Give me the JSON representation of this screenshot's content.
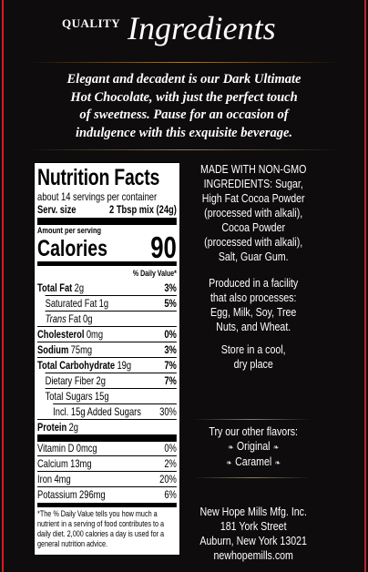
{
  "header": {
    "quality": "QUALITY",
    "title": "Ingredients"
  },
  "intro": [
    "Elegant and decadent is our Dark Ultimate",
    "Hot Chocolate, with just the perfect touch",
    "of sweetness. Pause for an occasion of",
    "indulgence with this exquisite beverage."
  ],
  "nutrition": {
    "title": "Nutrition Facts",
    "servings": "about 14 servings per container",
    "serving_size_label": "Serv. size",
    "serving_size": "2 Tbsp mix (24g)",
    "amount_per_serving": "Amount per serving",
    "calories_label": "Calories",
    "calories": "90",
    "dv_header": "% Daily Value*",
    "rows": [
      {
        "label": "Total Fat",
        "amount": "2g",
        "dv": "3%",
        "bold": true,
        "indent": 0
      },
      {
        "label": "Saturated Fat",
        "amount": "1g",
        "dv": "5%",
        "bold": false,
        "indent": 1
      },
      {
        "label_italic": "Trans",
        "label": "Fat",
        "amount": "0g",
        "bold": false,
        "indent": 1
      },
      {
        "label": "Cholesterol",
        "amount": "0mg",
        "dv": "0%",
        "bold": true,
        "indent": 0
      },
      {
        "label": "Sodium",
        "amount": "75mg",
        "dv": "3%",
        "bold": true,
        "indent": 0
      },
      {
        "label": "Total Carbohydrate",
        "amount": "19g",
        "dv": "7%",
        "bold": true,
        "indent": 0
      },
      {
        "label": "Dietary Fiber",
        "amount": "2g",
        "dv": "7%",
        "bold": false,
        "indent": 1
      },
      {
        "label": "Total Sugars",
        "amount": "15g",
        "bold": false,
        "indent": 1
      },
      {
        "label": "Incl. 15g Added Sugars",
        "dv": "30%",
        "bold": false,
        "indent": 2
      },
      {
        "label": "Protein",
        "amount": "2g",
        "bold": true,
        "indent": 0
      }
    ],
    "vitamins": [
      {
        "label": "Vitamin D",
        "amount": "0mcg",
        "dv": "0%"
      },
      {
        "label": "Calcium",
        "amount": "13mg",
        "dv": "2%"
      },
      {
        "label": "Iron",
        "amount": "4mg",
        "dv": "20%"
      },
      {
        "label": "Potassium",
        "amount": "296mg",
        "dv": "6%"
      }
    ],
    "footnote": [
      "*The % Daily Value tells you how much a",
      "nutrient in a serving of food contributes to a",
      "daily diet. 2,000 calories a day is used for a",
      "general nutrition advice."
    ]
  },
  "ingredients": [
    "MADE WITH NON-GMO",
    "INGREDIENTS: Sugar,",
    "High Fat Cocoa Powder",
    "(processed with alkali),",
    "Cocoa Powder",
    "(processed with alkali),",
    "Salt, Guar Gum."
  ],
  "facility": [
    "Produced in a facility",
    "that also processes:",
    "Egg, Milk, Soy, Tree",
    "Nuts, and Wheat."
  ],
  "storage": [
    "Store in a cool,",
    "dry place"
  ],
  "flavors": {
    "heading": "Try our other flavors:",
    "items": [
      "Original",
      "Caramel"
    ]
  },
  "address": [
    "New Hope Mills Mfg. Inc.",
    "181 York Street",
    "Auburn, New York 13021",
    "newhopemills.com"
  ]
}
